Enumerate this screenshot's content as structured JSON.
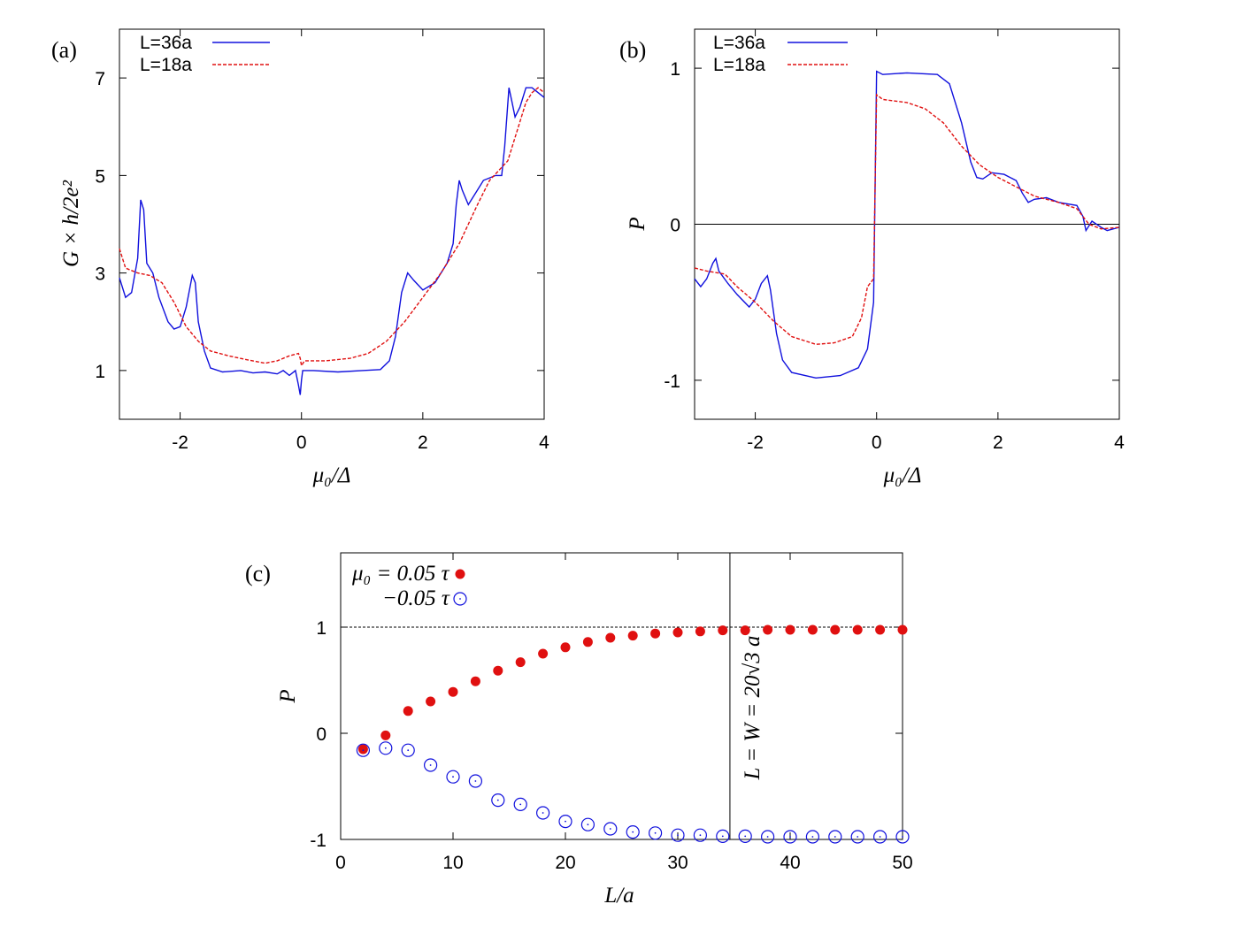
{
  "colors": {
    "blue": "#1010dd",
    "red": "#e01010",
    "axis": "#000000"
  },
  "chart_data": [
    {
      "id": "a",
      "type": "line",
      "panel_label": "(a)",
      "xlabel": "μ₀/Δ",
      "ylabel": "G × h/2e²",
      "xlim": [
        -3,
        4
      ],
      "ylim": [
        0,
        8
      ],
      "xticks": [
        -2,
        0,
        2,
        4
      ],
      "xtick_labels": [
        "-2",
        "0",
        "2",
        "4"
      ],
      "yticks": [
        1,
        3,
        5,
        7
      ],
      "ytick_labels": [
        "1",
        "3",
        "5",
        "7"
      ],
      "series": [
        {
          "name": "L=36a",
          "style": "solid",
          "color": "#1010dd",
          "points": [
            [
              -3,
              2.9
            ],
            [
              -2.9,
              2.5
            ],
            [
              -2.8,
              2.6
            ],
            [
              -2.7,
              3.3
            ],
            [
              -2.65,
              4.5
            ],
            [
              -2.6,
              4.3
            ],
            [
              -2.55,
              3.2
            ],
            [
              -2.45,
              3.0
            ],
            [
              -2.35,
              2.5
            ],
            [
              -2.2,
              2.0
            ],
            [
              -2.1,
              1.85
            ],
            [
              -2.0,
              1.9
            ],
            [
              -1.9,
              2.3
            ],
            [
              -1.8,
              2.95
            ],
            [
              -1.75,
              2.8
            ],
            [
              -1.7,
              2.0
            ],
            [
              -1.6,
              1.4
            ],
            [
              -1.5,
              1.05
            ],
            [
              -1.3,
              0.97
            ],
            [
              -1.0,
              1.0
            ],
            [
              -0.8,
              0.95
            ],
            [
              -0.6,
              0.97
            ],
            [
              -0.4,
              0.93
            ],
            [
              -0.3,
              1.0
            ],
            [
              -0.2,
              0.9
            ],
            [
              -0.1,
              1.0
            ],
            [
              -0.05,
              0.7
            ],
            [
              -0.02,
              0.5
            ],
            [
              0,
              0.8
            ],
            [
              0.02,
              1.0
            ],
            [
              0.2,
              1.0
            ],
            [
              0.6,
              0.97
            ],
            [
              1.0,
              1.0
            ],
            [
              1.3,
              1.02
            ],
            [
              1.45,
              1.2
            ],
            [
              1.55,
              1.7
            ],
            [
              1.65,
              2.6
            ],
            [
              1.75,
              3.0
            ],
            [
              1.85,
              2.85
            ],
            [
              2.0,
              2.65
            ],
            [
              2.2,
              2.8
            ],
            [
              2.4,
              3.2
            ],
            [
              2.5,
              3.6
            ],
            [
              2.55,
              4.4
            ],
            [
              2.6,
              4.9
            ],
            [
              2.65,
              4.7
            ],
            [
              2.75,
              4.4
            ],
            [
              2.9,
              4.7
            ],
            [
              3.0,
              4.9
            ],
            [
              3.2,
              5.0
            ],
            [
              3.3,
              5.0
            ],
            [
              3.35,
              5.6
            ],
            [
              3.42,
              6.8
            ],
            [
              3.47,
              6.5
            ],
            [
              3.52,
              6.2
            ],
            [
              3.6,
              6.4
            ],
            [
              3.7,
              6.8
            ],
            [
              3.8,
              6.8
            ],
            [
              3.9,
              6.7
            ],
            [
              4.0,
              6.6
            ]
          ]
        },
        {
          "name": "L=18a",
          "style": "dashed",
          "color": "#e01010",
          "points": [
            [
              -3,
              3.5
            ],
            [
              -2.9,
              3.1
            ],
            [
              -2.7,
              3.0
            ],
            [
              -2.5,
              2.95
            ],
            [
              -2.3,
              2.8
            ],
            [
              -2.1,
              2.4
            ],
            [
              -1.9,
              1.9
            ],
            [
              -1.7,
              1.6
            ],
            [
              -1.5,
              1.4
            ],
            [
              -1.2,
              1.3
            ],
            [
              -0.9,
              1.22
            ],
            [
              -0.6,
              1.15
            ],
            [
              -0.4,
              1.2
            ],
            [
              -0.2,
              1.3
            ],
            [
              -0.05,
              1.35
            ],
            [
              -0.02,
              1.25
            ],
            [
              0,
              1.1
            ],
            [
              0.05,
              1.2
            ],
            [
              0.4,
              1.2
            ],
            [
              0.8,
              1.25
            ],
            [
              1.1,
              1.35
            ],
            [
              1.4,
              1.6
            ],
            [
              1.7,
              2.0
            ],
            [
              2.0,
              2.5
            ],
            [
              2.3,
              3.0
            ],
            [
              2.6,
              3.6
            ],
            [
              2.9,
              4.4
            ],
            [
              3.1,
              4.9
            ],
            [
              3.4,
              5.3
            ],
            [
              3.6,
              6.1
            ],
            [
              3.7,
              6.5
            ],
            [
              3.8,
              6.7
            ],
            [
              3.9,
              6.8
            ],
            [
              4.0,
              6.7
            ]
          ]
        }
      ]
    },
    {
      "id": "b",
      "type": "line",
      "panel_label": "(b)",
      "xlabel": "μ₀/Δ",
      "ylabel": "P",
      "xlim": [
        -3,
        4
      ],
      "ylim": [
        -1.25,
        1.25
      ],
      "xticks": [
        -2,
        0,
        2,
        4
      ],
      "xtick_labels": [
        "-2",
        "0",
        "2",
        "4"
      ],
      "yticks": [
        -1,
        0,
        1
      ],
      "ytick_labels": [
        "-1",
        "0",
        "1"
      ],
      "zero_line": true,
      "series": [
        {
          "name": "L=36a",
          "style": "solid",
          "color": "#1010dd",
          "points": [
            [
              -3,
              -0.35
            ],
            [
              -2.9,
              -0.4
            ],
            [
              -2.8,
              -0.35
            ],
            [
              -2.7,
              -0.25
            ],
            [
              -2.65,
              -0.22
            ],
            [
              -2.6,
              -0.3
            ],
            [
              -2.45,
              -0.38
            ],
            [
              -2.3,
              -0.45
            ],
            [
              -2.1,
              -0.53
            ],
            [
              -2.0,
              -0.48
            ],
            [
              -1.9,
              -0.38
            ],
            [
              -1.8,
              -0.33
            ],
            [
              -1.75,
              -0.42
            ],
            [
              -1.65,
              -0.7
            ],
            [
              -1.55,
              -0.87
            ],
            [
              -1.4,
              -0.95
            ],
            [
              -1.0,
              -0.985
            ],
            [
              -0.6,
              -0.97
            ],
            [
              -0.3,
              -0.92
            ],
            [
              -0.15,
              -0.8
            ],
            [
              -0.05,
              -0.5
            ],
            [
              0,
              0.98
            ],
            [
              0.1,
              0.96
            ],
            [
              0.5,
              0.97
            ],
            [
              1.0,
              0.96
            ],
            [
              1.2,
              0.9
            ],
            [
              1.4,
              0.65
            ],
            [
              1.55,
              0.4
            ],
            [
              1.65,
              0.3
            ],
            [
              1.75,
              0.29
            ],
            [
              1.9,
              0.33
            ],
            [
              2.1,
              0.32
            ],
            [
              2.3,
              0.28
            ],
            [
              2.4,
              0.2
            ],
            [
              2.5,
              0.14
            ],
            [
              2.6,
              0.16
            ],
            [
              2.8,
              0.17
            ],
            [
              3.0,
              0.14
            ],
            [
              3.3,
              0.12
            ],
            [
              3.4,
              0.05
            ],
            [
              3.45,
              -0.04
            ],
            [
              3.55,
              0.02
            ],
            [
              3.7,
              -0.02
            ],
            [
              3.8,
              -0.04
            ],
            [
              4.0,
              -0.02
            ]
          ]
        },
        {
          "name": "L=18a",
          "style": "dashed",
          "color": "#e01010",
          "points": [
            [
              -3,
              -0.28
            ],
            [
              -2.8,
              -0.3
            ],
            [
              -2.5,
              -0.32
            ],
            [
              -2.3,
              -0.4
            ],
            [
              -2.0,
              -0.5
            ],
            [
              -1.7,
              -0.62
            ],
            [
              -1.4,
              -0.72
            ],
            [
              -1.0,
              -0.77
            ],
            [
              -0.7,
              -0.76
            ],
            [
              -0.4,
              -0.72
            ],
            [
              -0.25,
              -0.6
            ],
            [
              -0.15,
              -0.4
            ],
            [
              -0.05,
              -0.35
            ],
            [
              0,
              0.83
            ],
            [
              0.1,
              0.8
            ],
            [
              0.5,
              0.78
            ],
            [
              0.8,
              0.74
            ],
            [
              1.1,
              0.65
            ],
            [
              1.4,
              0.5
            ],
            [
              1.7,
              0.38
            ],
            [
              2.0,
              0.3
            ],
            [
              2.3,
              0.24
            ],
            [
              2.6,
              0.18
            ],
            [
              3.0,
              0.14
            ],
            [
              3.3,
              0.1
            ],
            [
              3.5,
              0.0
            ],
            [
              3.7,
              -0.03
            ],
            [
              4.0,
              -0.02
            ]
          ]
        }
      ]
    },
    {
      "id": "c",
      "type": "scatter",
      "panel_label": "(c)",
      "xlabel": "L/a",
      "ylabel": "P",
      "xlim": [
        0,
        50
      ],
      "ylim": [
        -1,
        1.7
      ],
      "xticks": [
        0,
        10,
        20,
        30,
        40,
        50
      ],
      "xtick_labels": [
        "0",
        "10",
        "20",
        "30",
        "40",
        "50"
      ],
      "yticks": [
        -1,
        0,
        1
      ],
      "ytick_labels": [
        "-1",
        "0",
        "1"
      ],
      "reference_line_y": 1,
      "vertical_line_x": 34.64,
      "vertical_line_label": "L = W = 20√3 a",
      "series": [
        {
          "name": "μ₀ = 0.05 τ",
          "marker": "filled-circle",
          "color": "#e01010",
          "x": [
            2,
            4,
            6,
            8,
            10,
            12,
            14,
            16,
            18,
            20,
            22,
            24,
            26,
            28,
            30,
            32,
            34,
            36,
            38,
            40,
            42,
            44,
            46,
            48,
            50
          ],
          "y": [
            -0.15,
            -0.02,
            0.21,
            0.3,
            0.39,
            0.49,
            0.59,
            0.67,
            0.75,
            0.81,
            0.86,
            0.9,
            0.92,
            0.94,
            0.95,
            0.96,
            0.97,
            0.97,
            0.975,
            0.975,
            0.975,
            0.975,
            0.975,
            0.975,
            0.975
          ]
        },
        {
          "name": "−0.05 τ",
          "marker": "open-circle",
          "color": "#1010dd",
          "x": [
            2,
            4,
            6,
            8,
            10,
            12,
            14,
            16,
            18,
            20,
            22,
            24,
            26,
            28,
            30,
            32,
            34,
            36,
            38,
            40,
            42,
            44,
            46,
            48,
            50
          ],
          "y": [
            -0.16,
            -0.14,
            -0.16,
            -0.3,
            -0.41,
            -0.45,
            -0.63,
            -0.67,
            -0.75,
            -0.83,
            -0.86,
            -0.9,
            -0.93,
            -0.94,
            -0.96,
            -0.96,
            -0.97,
            -0.97,
            -0.975,
            -0.975,
            -0.975,
            -0.975,
            -0.975,
            -0.975,
            -0.975
          ]
        }
      ]
    }
  ]
}
